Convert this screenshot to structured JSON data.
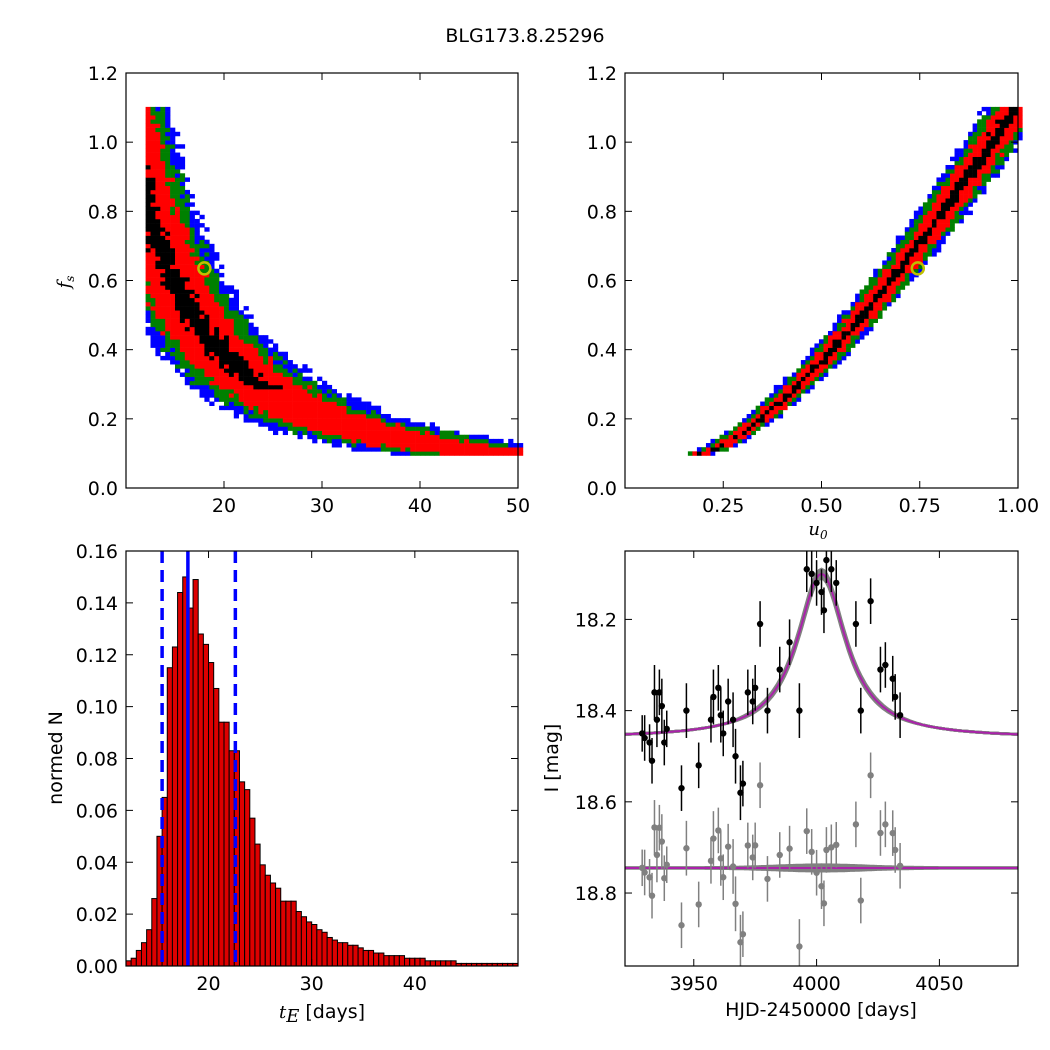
{
  "figure_title": "BLG173.8.25296",
  "colors": {
    "level1": "#000000",
    "level2": "#ff0000",
    "level3": "#008000",
    "level4": "#0000ff",
    "best_fit_marker": "#bfbf00",
    "hist_fill": "#dd0000",
    "hist_edge": "#000000",
    "line_blue": "#0000ff",
    "model": "#aa22aa",
    "data_main": "#000000",
    "data_resid": "#808080"
  },
  "chart_data": [
    {
      "id": "fs_vs_tE",
      "type": "heatmap",
      "xlim": [
        10,
        50
      ],
      "ylim": [
        0,
        1.2
      ],
      "xticks": [
        "20",
        "30",
        "40",
        "50"
      ],
      "yticks": [
        "0.0",
        "0.2",
        "0.4",
        "0.6",
        "0.8",
        "1.0",
        "1.2"
      ],
      "xlabel": "",
      "ylabel": "f_s",
      "ylabel_main": "f",
      "ylabel_sub": "s",
      "best_fit": {
        "x": 18.0,
        "y": 0.635
      },
      "levels": [
        "black",
        "red",
        "green",
        "blue"
      ]
    },
    {
      "id": "fs_vs_u0",
      "type": "heatmap",
      "xlim": [
        0.0,
        1.0
      ],
      "ylim": [
        0,
        1.2
      ],
      "xticks": [
        "0.25",
        "0.50",
        "0.75",
        "1.00"
      ],
      "yticks": [
        "0.0",
        "0.2",
        "0.4",
        "0.6",
        "0.8",
        "1.0",
        "1.2"
      ],
      "xlabel": "u_0",
      "xlabel_main": "u",
      "xlabel_sub": "0",
      "ylabel": "",
      "best_fit": {
        "x": 0.745,
        "y": 0.635
      }
    },
    {
      "id": "tE_histogram",
      "type": "bar",
      "xlim": [
        12,
        50
      ],
      "ylim": [
        0,
        0.16
      ],
      "bin_width": 0.5,
      "bins_start": 12,
      "values": [
        0.002,
        0.003,
        0.006,
        0.009,
        0.014,
        0.026,
        0.05,
        0.065,
        0.115,
        0.123,
        0.144,
        0.15,
        0.138,
        0.149,
        0.128,
        0.124,
        0.117,
        0.107,
        0.094,
        0.094,
        0.083,
        0.083,
        0.071,
        0.068,
        0.057,
        0.047,
        0.039,
        0.035,
        0.032,
        0.03,
        0.025,
        0.025,
        0.025,
        0.021,
        0.019,
        0.017,
        0.016,
        0.014,
        0.013,
        0.011,
        0.01,
        0.009,
        0.009,
        0.008,
        0.008,
        0.007,
        0.006,
        0.006,
        0.005,
        0.005,
        0.004,
        0.004,
        0.004,
        0.004,
        0.003,
        0.003,
        0.003,
        0.003,
        0.002,
        0.002,
        0.002,
        0.002,
        0.002,
        0.002,
        0.001,
        0.001,
        0.001,
        0.001,
        0.001,
        0.001,
        0.001,
        0.001,
        0.001,
        0.001,
        0.001,
        0.001
      ],
      "median": 18.0,
      "lower": 15.5,
      "upper": 22.6,
      "xticks": [
        "20",
        "30",
        "40"
      ],
      "yticks": [
        "0.00",
        "0.02",
        "0.04",
        "0.06",
        "0.08",
        "0.10",
        "0.12",
        "0.14",
        "0.16"
      ],
      "xlabel_math": "t",
      "xlabel_sub": "E",
      "xlabel_text": " [days]",
      "ylabel": "normed N"
    },
    {
      "id": "light_curve",
      "type": "scatter",
      "xlim": [
        3922,
        4082
      ],
      "ylim": [
        18.96,
        18.05
      ],
      "xticks": [
        "3950",
        "4000",
        "4050"
      ],
      "yticks": [
        "18.2",
        "18.4",
        "18.6",
        "18.8"
      ],
      "xlabel": "HJD-2450000 [days]",
      "ylabel": "I [mag]",
      "model": {
        "t0": 4002,
        "base": 18.46,
        "peak": 18.1,
        "tE": 18
      },
      "residual_base": 18.745,
      "points": [
        [
          3929,
          18.45,
          0.04
        ],
        [
          3930,
          18.46,
          0.05
        ],
        [
          3932,
          18.47,
          0.04
        ],
        [
          3933,
          18.51,
          0.05
        ],
        [
          3934,
          18.36,
          0.06
        ],
        [
          3935,
          18.42,
          0.06
        ],
        [
          3936,
          18.36,
          0.05
        ],
        [
          3937,
          18.39,
          0.06
        ],
        [
          3938,
          18.47,
          0.05
        ],
        [
          3939,
          18.44,
          0.04
        ],
        [
          3945,
          18.57,
          0.05
        ],
        [
          3947,
          18.4,
          0.06
        ],
        [
          3952,
          18.52,
          0.05
        ],
        [
          3957,
          18.42,
          0.05
        ],
        [
          3958,
          18.37,
          0.06
        ],
        [
          3960,
          18.35,
          0.05
        ],
        [
          3961,
          18.41,
          0.06
        ],
        [
          3962,
          18.45,
          0.05
        ],
        [
          3964,
          18.38,
          0.05
        ],
        [
          3966,
          18.42,
          0.06
        ],
        [
          3967,
          18.5,
          0.06
        ],
        [
          3969,
          18.58,
          0.06
        ],
        [
          3970,
          18.56,
          0.05
        ],
        [
          3972,
          18.36,
          0.05
        ],
        [
          3974,
          18.38,
          0.05
        ],
        [
          3975,
          18.35,
          0.05
        ],
        [
          3977,
          18.21,
          0.05
        ],
        [
          3980,
          18.4,
          0.05
        ],
        [
          3985,
          18.31,
          0.05
        ],
        [
          3989,
          18.25,
          0.05
        ],
        [
          3993,
          18.4,
          0.06
        ],
        [
          3996,
          18.09,
          0.05
        ],
        [
          3998,
          18.1,
          0.05
        ],
        [
          4000,
          18.12,
          0.05
        ],
        [
          4002,
          18.14,
          0.05
        ],
        [
          4003,
          18.18,
          0.05
        ],
        [
          4004,
          18.07,
          0.05
        ],
        [
          4006,
          18.09,
          0.05
        ],
        [
          4008,
          18.12,
          0.05
        ],
        [
          4016,
          18.21,
          0.05
        ],
        [
          4018,
          18.4,
          0.05
        ],
        [
          4022,
          18.16,
          0.05
        ],
        [
          4026,
          18.31,
          0.05
        ],
        [
          4028,
          18.3,
          0.05
        ],
        [
          4031,
          18.33,
          0.05
        ],
        [
          4032,
          18.37,
          0.05
        ],
        [
          4034,
          18.41,
          0.05
        ]
      ]
    }
  ]
}
